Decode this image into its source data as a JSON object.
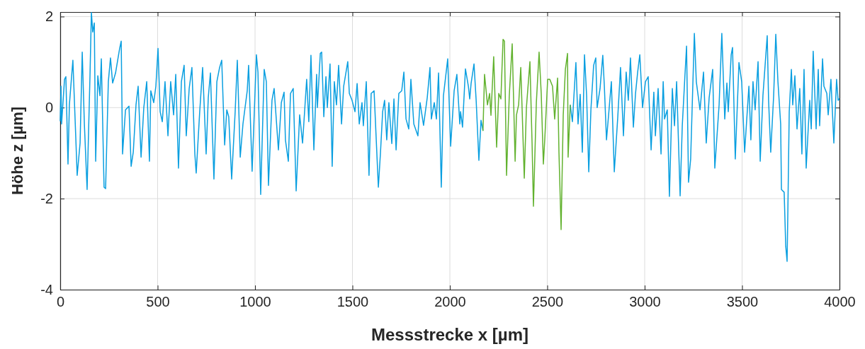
{
  "chart_data": {
    "type": "line",
    "xlabel": "Messstrecke x [µm]",
    "ylabel": "Höhe z [µm]",
    "xlim": [
      0,
      4000
    ],
    "ylim": [
      -4,
      2.1
    ],
    "xticks": [
      0,
      500,
      1000,
      1500,
      2000,
      2500,
      3000,
      3500,
      4000
    ],
    "yticks": [
      -4,
      -2,
      0,
      2
    ],
    "grid": true,
    "line_style": "solid",
    "series": [
      {
        "color": "#0a9fe0",
        "x": [
          0,
          4,
          7,
          22,
          29,
          40,
          47,
          65,
          80,
          87,
          102,
          113,
          124,
          138,
          153,
          160,
          167,
          175,
          182,
          193,
          204,
          211,
          225,
          233,
          247,
          258,
          269,
          284,
          305,
          313,
          320,
          335,
          353,
          364,
          375,
          389,
          400,
          415,
          429,
          444,
          458,
          465,
          480,
          491,
          502,
          513,
          524,
          538,
          553,
          567,
          582,
          593,
          607,
          622,
          636,
          647,
          662,
          676,
          691,
          698,
          716,
          731,
          749,
          760,
          771,
          789,
          804,
          818,
          829,
          844,
          855,
          865,
          880,
          898,
          909,
          924,
          938,
          960,
          967,
          985,
          1007,
          1015,
          1029,
          1047,
          1058,
          1069,
          1087,
          1098,
          1120,
          1135,
          1149,
          1156,
          1171,
          1182,
          1196,
          1211,
          1229,
          1244,
          1262,
          1265,
          1276,
          1287,
          1302,
          1316,
          1320,
          1335,
          1342,
          1353,
          1364,
          1371,
          1385,
          1396,
          1407,
          1418,
          1429,
          1444,
          1455,
          1476,
          1484,
          1498,
          1513,
          1524,
          1535,
          1549,
          1556,
          1571,
          1585,
          1596,
          1611,
          1633,
          1644,
          1655,
          1665,
          1676,
          1687,
          1702,
          1713,
          1724,
          1738,
          1753,
          1764,
          1775,
          1789,
          1800,
          1815,
          1836,
          1847,
          1865,
          1884,
          1898,
          1905,
          1920,
          1931,
          1942,
          1956,
          1967,
          1989,
          2004,
          2022,
          2036,
          2051,
          2055,
          2065,
          2080,
          2095,
          2102,
          2109,
          2124,
          2135,
          2149,
          2160,
          2170,
          2400,
          2618,
          2629,
          2647,
          2658,
          2669,
          2680,
          2691,
          2702,
          2713,
          2724,
          2738,
          2749,
          2756,
          2771,
          2785,
          2793,
          2804,
          2818,
          2829,
          2844,
          2862,
          2876,
          2891,
          2905,
          2916,
          2927,
          2942,
          2953,
          2964,
          2975,
          2989,
          3004,
          3018,
          3033,
          3047,
          3055,
          3069,
          3084,
          3095,
          3102,
          3116,
          3127,
          3142,
          3153,
          3164,
          3182,
          3193,
          3207,
          3215,
          3225,
          3236,
          3255,
          3265,
          3284,
          3302,
          3316,
          3331,
          3349,
          3360,
          3382,
          3396,
          3411,
          3422,
          3429,
          3444,
          3451,
          3465,
          3484,
          3498,
          3513,
          3535,
          3545,
          3556,
          3567,
          3582,
          3593,
          3607,
          3629,
          3636,
          3647,
          3662,
          3673,
          3684,
          3698,
          3702,
          3716,
          3724,
          3731,
          3735,
          3742,
          3753,
          3760,
          3771,
          3782,
          3796,
          3807,
          3818,
          3829,
          3847,
          3855,
          3865,
          3880,
          3891,
          3898,
          3913,
          3920,
          3935,
          3942,
          3956,
          3971,
          3985,
          3993,
          4000
        ],
        "values": [
          -0.3,
          0.47,
          -0.36,
          0.62,
          0.68,
          -1.24,
          0.06,
          1.04,
          -0.67,
          -1.49,
          -0.78,
          1.22,
          -0.36,
          -1.8,
          0.73,
          2.09,
          1.66,
          1.86,
          -1.18,
          0.7,
          0.26,
          1.07,
          -1.75,
          -1.78,
          0.57,
          1.09,
          0.54,
          0.76,
          1.3,
          1.46,
          -1.02,
          -0.05,
          0.03,
          -1.29,
          -0.98,
          0.06,
          0.47,
          -1.09,
          0,
          0.57,
          -1.18,
          0.37,
          0.11,
          0.47,
          1.3,
          -0.09,
          -0.31,
          0.57,
          -0.62,
          0.57,
          -0.16,
          0.73,
          -1.33,
          0.57,
          0.93,
          -0.62,
          0.42,
          0.88,
          -1.02,
          -1.44,
          -0.09,
          0.88,
          -1.02,
          0.22,
          0.76,
          -1.57,
          0.57,
          0.88,
          1.04,
          -0.82,
          -0.05,
          -0.2,
          -1.57,
          -0.09,
          1.04,
          -1.09,
          -0.36,
          0.37,
          0.93,
          -1.4,
          1.16,
          0.78,
          -1.91,
          0.84,
          0.57,
          -1.71,
          0.16,
          0.42,
          -0.93,
          0.11,
          0.34,
          -0.71,
          -1.18,
          0.31,
          0.42,
          -1.83,
          -0.16,
          -0.78,
          0.42,
          0.62,
          -0.31,
          1.15,
          -0.93,
          0.73,
          0,
          1.19,
          1.22,
          -0.2,
          0.68,
          0,
          0.96,
          -1.29,
          0.57,
          0.06,
          0.93,
          -0.36,
          0.47,
          1.01,
          0.31,
          0.16,
          -0.09,
          0.53,
          -0.36,
          0.11,
          -0.4,
          0.57,
          -1.49,
          0.31,
          0.37,
          -1.75,
          -0.98,
          -0.09,
          0.16,
          -0.71,
          0.11,
          -0.79,
          0.19,
          -0.93,
          0.31,
          0.37,
          0.78,
          -0.25,
          -0.47,
          0.62,
          -0.36,
          -0.62,
          0.11,
          -0.39,
          0.22,
          0.88,
          -0.25,
          0.11,
          -0.25,
          0.76,
          -1.75,
          0.26,
          1.07,
          -0.85,
          0.37,
          0.73,
          -0.36,
          -0.09,
          -0.43,
          0.85,
          0.47,
          0.19,
          0.53,
          0.96,
          0.16,
          -1.16,
          -0.28,
          -0.51,
          null,
          0.06,
          -0.31,
          0.99,
          -0.36,
          0.29,
          -0.98,
          1.16,
          0.26,
          -1.41,
          -0.05,
          0.93,
          1.09,
          0,
          0.42,
          1.15,
          0.47,
          -0.71,
          0,
          0.57,
          -1.41,
          -0.2,
          0.88,
          -0.62,
          0.78,
          0.16,
          1.09,
          -0.43,
          0.31,
          0.78,
          1.16,
          0,
          0.57,
          0.68,
          -0.93,
          0.34,
          -0.62,
          0.42,
          -1.02,
          0.57,
          -0.25,
          -0.05,
          -1.95,
          0.42,
          -0.4,
          0.57,
          -1.94,
          -0.4,
          0.73,
          1.35,
          -1.64,
          -1.13,
          1.63,
          0.57,
          -0.05,
          0.78,
          -0.78,
          0.22,
          0.84,
          -1.33,
          0.06,
          1.63,
          -0.25,
          0.54,
          -0.09,
          1.16,
          1.32,
          -1.13,
          0.99,
          0.57,
          -0.98,
          0.47,
          -0.71,
          0.57,
          -0.05,
          1.01,
          -1.18,
          0.26,
          1.58,
          0.16,
          -0.98,
          0.26,
          1.61,
          0.57,
          -0.36,
          -1.8,
          -1.86,
          -3.04,
          -3.38,
          -2.26,
          -0.09,
          0.84,
          0.06,
          0.7,
          -0.47,
          0.42,
          -1.02,
          0.84,
          -1.33,
          0.16,
          -0.47,
          1.24,
          -0.47,
          0.84,
          -0.4,
          1.07,
          0.47,
          0.31,
          -0.16,
          0.62,
          -0.78,
          0.62,
          0.16,
          0.2
        ]
      },
      {
        "color": "#62b22f",
        "x": [
          2170,
          2178,
          2193,
          2204,
          2211,
          2225,
          2240,
          2251,
          2262,
          2273,
          2280,
          2291,
          2305,
          2320,
          2335,
          2342,
          2353,
          2364,
          2371,
          2382,
          2393,
          2411,
          2422,
          2429,
          2444,
          2458,
          2469,
          2480,
          2487,
          2502,
          2513,
          2527,
          2538,
          2553,
          2560,
          2571,
          2582,
          2593,
          2604,
          2607,
          2618
        ],
        "values": [
          -0.51,
          0.73,
          0.06,
          0.31,
          -0.17,
          1.12,
          -0.87,
          0.31,
          0.19,
          1.5,
          1.46,
          -1.49,
          0.26,
          1.4,
          -1.18,
          -0.16,
          0.06,
          0.88,
          -0.05,
          -1.55,
          0,
          1.01,
          -0.78,
          -2.17,
          0.11,
          1.22,
          0.31,
          -1.24,
          -0.71,
          0.62,
          0.62,
          0.47,
          -0.25,
          0.65,
          -0.98,
          -2.68,
          -0.16,
          0.84,
          1.19,
          -1.09,
          0.06
        ]
      }
    ]
  }
}
